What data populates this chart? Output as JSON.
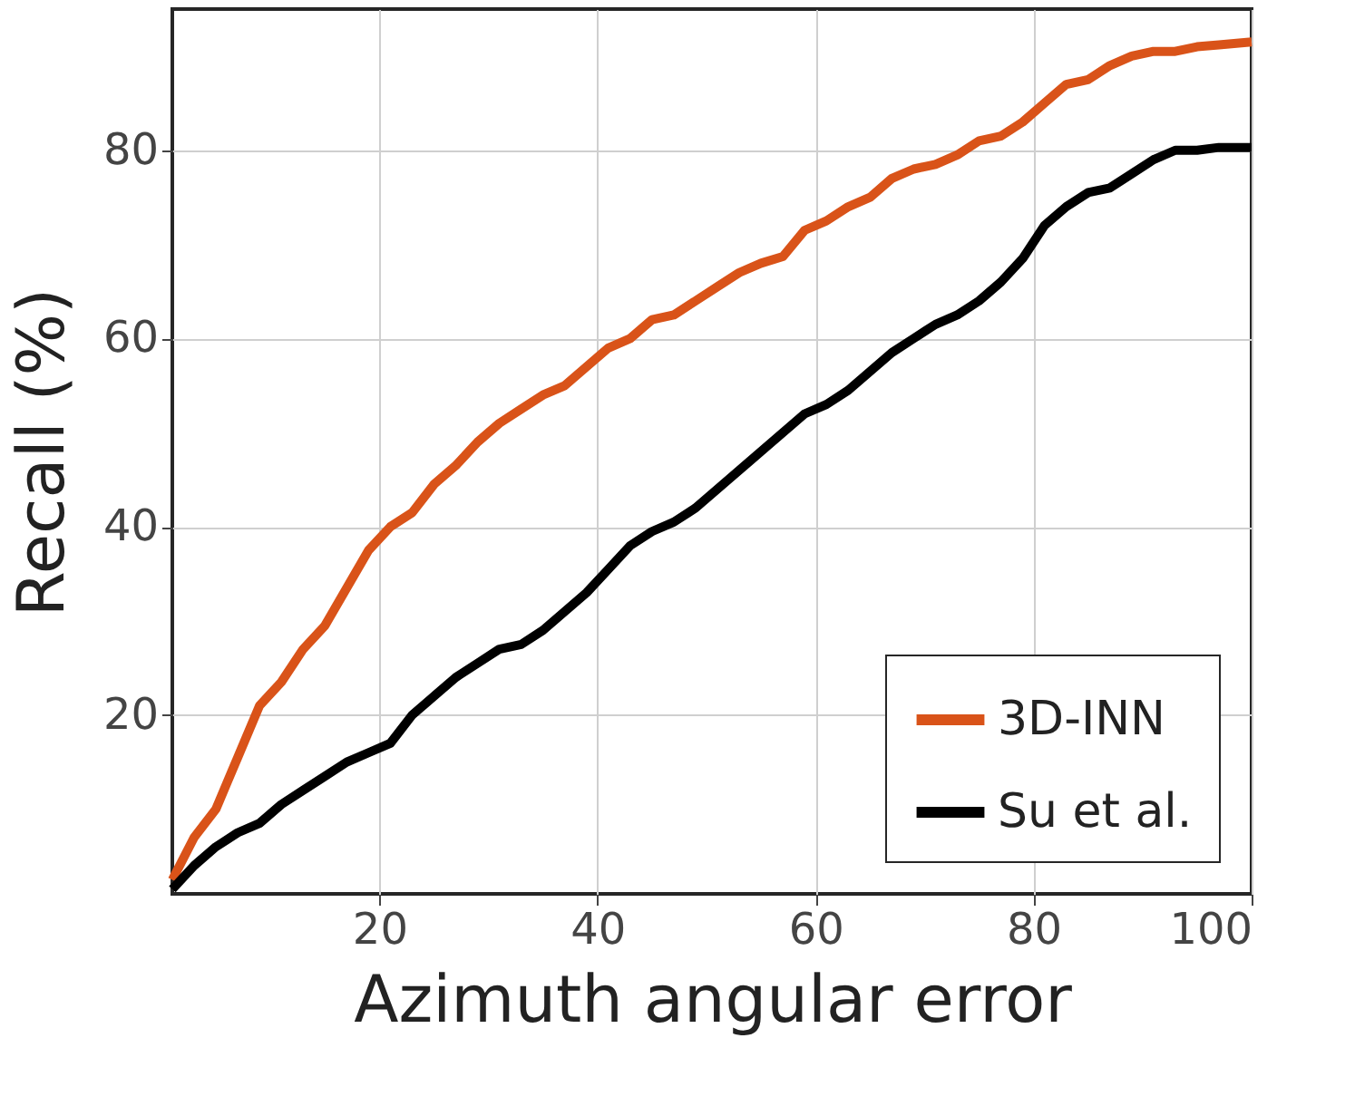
{
  "chart_data": {
    "type": "line",
    "xlabel": "Azimuth angular error",
    "ylabel": "Recall (%)",
    "x": [
      1,
      3,
      5,
      7,
      9,
      11,
      13,
      15,
      17,
      19,
      21,
      23,
      25,
      27,
      29,
      31,
      33,
      35,
      37,
      39,
      41,
      43,
      45,
      47,
      49,
      51,
      53,
      55,
      57,
      59,
      61,
      63,
      65,
      67,
      69,
      71,
      73,
      75,
      77,
      79,
      81,
      83,
      85,
      87,
      89,
      91,
      93,
      95,
      97,
      100
    ],
    "series": [
      {
        "name": "3D-INN",
        "color": "#d95319",
        "values": [
          2.5,
          7,
          10,
          15.5,
          21,
          23.5,
          27,
          29.5,
          33.5,
          37.5,
          40,
          41.5,
          44.5,
          46.5,
          49,
          51,
          52.5,
          54,
          55,
          57,
          59,
          60,
          62,
          62.5,
          64,
          65.5,
          67,
          68,
          68.7,
          71.5,
          72.5,
          74,
          75,
          77,
          78,
          78.5,
          79.5,
          81,
          81.5,
          83,
          85,
          87,
          87.5,
          89,
          90,
          90.5,
          90.5,
          91,
          91.2,
          91.5
        ]
      },
      {
        "name": "Su et al.",
        "color": "#000000",
        "values": [
          1.5,
          4,
          6,
          7.5,
          8.5,
          10.5,
          12,
          13.5,
          15,
          16,
          17,
          20,
          22,
          24,
          25.5,
          27,
          27.5,
          29,
          31,
          33,
          35.5,
          38,
          39.5,
          40.5,
          42,
          44,
          46,
          48,
          50,
          52,
          53,
          54.5,
          56.5,
          58.5,
          60,
          61.5,
          62.5,
          64,
          66,
          68.5,
          72,
          74,
          75.5,
          76,
          77.5,
          79,
          80,
          80,
          80.3,
          80.3
        ]
      }
    ],
    "xlim": [
      1,
      100
    ],
    "ylim": [
      1,
      95
    ],
    "xticks": [
      20,
      40,
      60,
      80,
      100
    ],
    "yticks": [
      20,
      40,
      60,
      80
    ],
    "grid": true,
    "legend": "bottom right",
    "marker": "none",
    "line_style": "solid"
  }
}
